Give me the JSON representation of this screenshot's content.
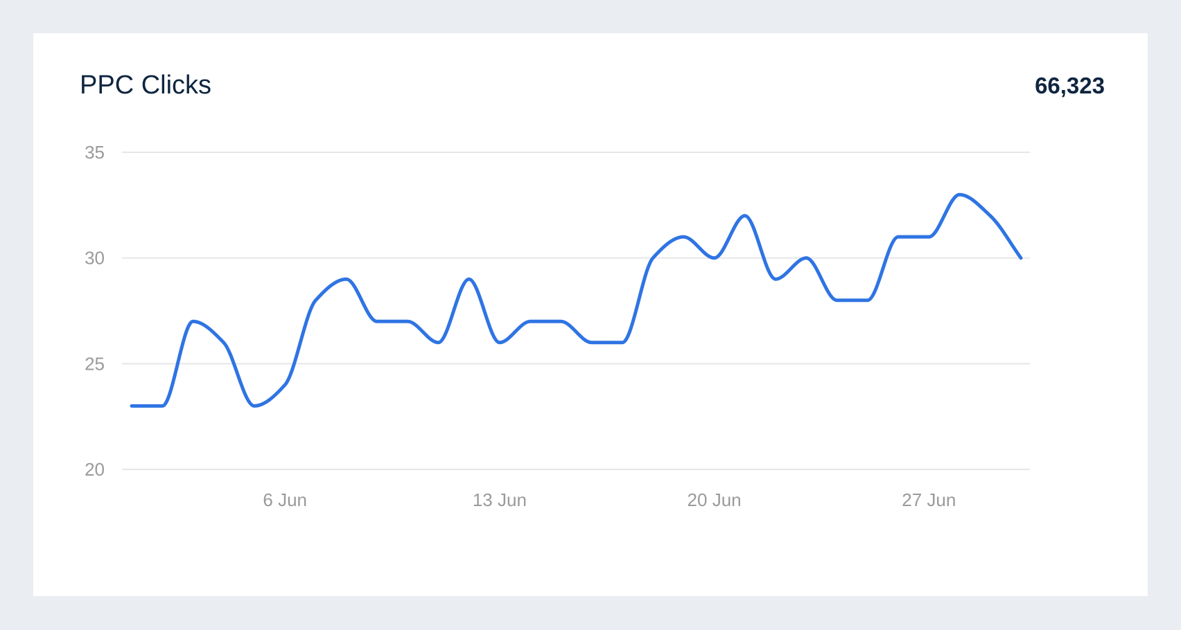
{
  "card": {
    "title": "PPC Clicks",
    "total": "66,323"
  },
  "colors": {
    "page_background": "#eaedf1",
    "card_background": "#ffffff",
    "title": "#0f2540",
    "line": "#2f74e3",
    "grid": "#e6e6e6",
    "tick_label": "#9a9a9a"
  },
  "chart_data": {
    "type": "line",
    "title": "PPC Clicks",
    "xlabel": "",
    "ylabel": "",
    "x": [
      "1 Jun",
      "2 Jun",
      "3 Jun",
      "4 Jun",
      "5 Jun",
      "6 Jun",
      "7 Jun",
      "8 Jun",
      "9 Jun",
      "10 Jun",
      "11 Jun",
      "12 Jun",
      "13 Jun",
      "14 Jun",
      "15 Jun",
      "16 Jun",
      "17 Jun",
      "18 Jun",
      "19 Jun",
      "20 Jun",
      "21 Jun",
      "22 Jun",
      "23 Jun",
      "24 Jun",
      "25 Jun",
      "26 Jun",
      "27 Jun",
      "28 Jun",
      "29 Jun",
      "30 Jun"
    ],
    "series": [
      {
        "values": [
          23,
          23,
          27,
          26,
          23,
          24,
          28,
          29,
          27,
          27,
          26,
          29,
          26,
          27,
          27,
          26,
          26,
          30,
          31,
          30,
          32,
          29,
          30,
          28,
          28,
          31,
          31,
          33,
          32,
          30
        ]
      }
    ],
    "x_ticks": [
      "6 Jun",
      "13 Jun",
      "20 Jun",
      "27 Jun"
    ],
    "y_ticks": [
      20,
      25,
      30,
      35
    ],
    "ylim": [
      20,
      35
    ],
    "grid": "horizontal",
    "legend": "none"
  }
}
